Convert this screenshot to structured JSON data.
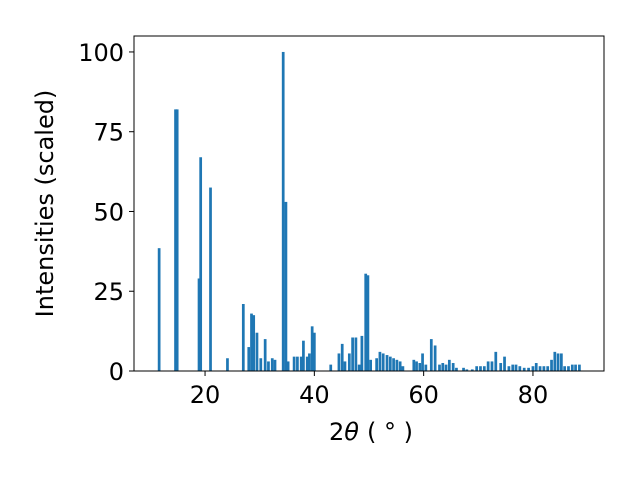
{
  "chart_data": {
    "type": "bar",
    "title": "",
    "xlabel_parts": {
      "prefix": "2",
      "theta": "θ",
      "unit": "( ° )"
    },
    "ylabel": "Intensities (scaled)",
    "xlim": [
      7,
      93
    ],
    "ylim": [
      0,
      105
    ],
    "xticks": [
      {
        "value": 20,
        "label": "20"
      },
      {
        "value": 40,
        "label": "40"
      },
      {
        "value": 60,
        "label": "60"
      },
      {
        "value": 80,
        "label": "80"
      }
    ],
    "yticks": [
      {
        "value": 0,
        "label": "0"
      },
      {
        "value": 25,
        "label": "25"
      },
      {
        "value": 50,
        "label": "50"
      },
      {
        "value": 75,
        "label": "75"
      },
      {
        "value": 100,
        "label": "100"
      }
    ],
    "bar_width": 0.5,
    "bar_color": "#1f77b4",
    "grid": false,
    "x": [
      11.6,
      14.6,
      14.9,
      18.9,
      19.2,
      21.0,
      24.1,
      27.0,
      28.0,
      28.5,
      28.9,
      29.5,
      30.2,
      31.0,
      31.6,
      32.3,
      32.8,
      34.3,
      34.8,
      35.2,
      36.3,
      36.9,
      37.6,
      38.0,
      38.7,
      39.1,
      39.6,
      40.0,
      43.0,
      44.5,
      45.1,
      45.6,
      46.4,
      47.0,
      47.6,
      48.2,
      48.7,
      49.4,
      49.8,
      50.3,
      51.4,
      52.0,
      52.6,
      53.3,
      53.9,
      54.5,
      55.1,
      55.7,
      56.2,
      58.2,
      58.7,
      59.3,
      59.8,
      60.4,
      61.4,
      62.1,
      62.9,
      63.5,
      64.1,
      64.7,
      65.4,
      66.0,
      67.3,
      67.9,
      68.9,
      69.7,
      70.4,
      71.1,
      71.8,
      72.5,
      73.2,
      74.1,
      74.8,
      75.6,
      76.3,
      76.9,
      77.6,
      78.4,
      79.2,
      80.0,
      80.6,
      81.3,
      82.0,
      82.7,
      83.4,
      84.0,
      84.6,
      85.2,
      85.8,
      86.5,
      87.2,
      87.8,
      88.5
    ],
    "values": [
      38.5,
      82.0,
      82.0,
      29.0,
      67.0,
      57.5,
      4.0,
      21.0,
      7.5,
      18.0,
      17.5,
      12.0,
      4.0,
      10.0,
      3.0,
      4.0,
      3.5,
      100.0,
      53.0,
      3.0,
      4.5,
      4.5,
      4.5,
      9.5,
      4.5,
      5.5,
      14.0,
      12.0,
      2.0,
      5.5,
      8.5,
      3.0,
      5.5,
      10.5,
      10.5,
      2.0,
      11.0,
      30.5,
      30.0,
      3.5,
      4.0,
      6.0,
      5.5,
      5.0,
      4.5,
      4.0,
      3.5,
      3.0,
      1.5,
      3.5,
      3.0,
      2.5,
      5.5,
      2.0,
      10.0,
      8.0,
      2.0,
      2.5,
      2.0,
      3.5,
      2.5,
      1.0,
      1.0,
      0.5,
      0.5,
      1.5,
      1.5,
      1.5,
      3.0,
      3.0,
      6.0,
      2.5,
      4.5,
      1.5,
      2.0,
      2.0,
      1.5,
      1.0,
      1.0,
      1.5,
      2.5,
      1.5,
      1.5,
      1.5,
      3.5,
      6.0,
      5.5,
      5.5,
      1.5,
      1.5,
      2.0,
      2.0,
      2.0
    ]
  }
}
